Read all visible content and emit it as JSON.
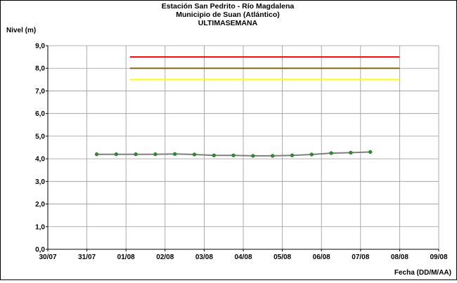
{
  "chart_data": {
    "type": "line",
    "title": [
      "Estación San Pedrito - Río Magdalena",
      "Municipio de Suan (Atlántico)",
      "ULTIMASEMANA"
    ],
    "ylabel": "Nivel (m)",
    "xlabel": "Fecha (DD/M/AA)",
    "ylim": [
      0,
      9
    ],
    "y_ticks": [
      "0,0",
      "1,0",
      "2,0",
      "3,0",
      "4,0",
      "5,0",
      "6,0",
      "7,0",
      "8,0",
      "9,0"
    ],
    "x_ticks": [
      "30/07",
      "31/07",
      "01/08",
      "02/08",
      "03/08",
      "04/08",
      "05/08",
      "06/08",
      "07/08",
      "08/08",
      "09/08"
    ],
    "grid": true,
    "series": [
      {
        "role": "level",
        "color": "#2e8b2e",
        "line_color": "#808080",
        "x": [
          1.25,
          1.75,
          2.25,
          2.75,
          3.25,
          3.75,
          4.25,
          4.75,
          5.25,
          5.75,
          6.25,
          6.75,
          7.25,
          7.75,
          8.25
        ],
        "values": [
          4.2,
          4.2,
          4.2,
          4.2,
          4.21,
          4.19,
          4.15,
          4.15,
          4.13,
          4.13,
          4.15,
          4.19,
          4.25,
          4.27,
          4.3
        ]
      }
    ],
    "reference_lines": [
      {
        "value": 8.5,
        "color": "#ff0000",
        "x_start": 2.1,
        "x_end": 9.0
      },
      {
        "value": 8.0,
        "color": "#8b6914",
        "x_start": 2.1,
        "x_end": 9.0
      },
      {
        "value": 7.5,
        "color": "#ffff00",
        "x_start": 2.1,
        "x_end": 9.0
      }
    ]
  }
}
